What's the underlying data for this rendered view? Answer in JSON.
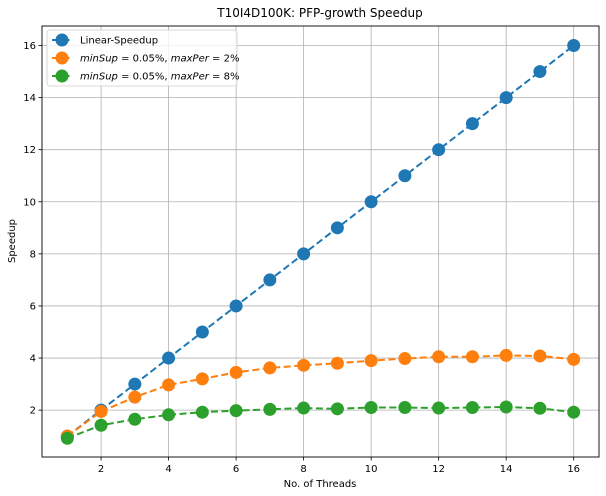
{
  "chart_data": {
    "type": "line",
    "title": "T10I4D100K: PFP-growth Speedup",
    "xlabel": "No. of Threads",
    "ylabel": "Speedup",
    "xlim": [
      0.25,
      16.75
    ],
    "ylim": [
      0.2,
      16.75
    ],
    "xticks": [
      2,
      4,
      6,
      8,
      10,
      12,
      14,
      16
    ],
    "yticks": [
      2,
      4,
      6,
      8,
      10,
      12,
      14,
      16
    ],
    "grid": true,
    "legend_position": "top-left",
    "x": [
      1,
      2,
      3,
      4,
      5,
      6,
      7,
      8,
      9,
      10,
      11,
      12,
      13,
      14,
      15,
      16
    ],
    "series": [
      {
        "name": "Linear-Speedup",
        "legend_parts": [
          {
            "text": "Linear-Speedup",
            "italic": false
          }
        ],
        "color": "#1f77b4",
        "values": [
          1,
          2,
          3,
          4,
          5,
          6,
          7,
          8,
          9,
          10,
          11,
          12,
          13,
          14,
          15,
          16
        ]
      },
      {
        "name": "minSup = 0.05%, maxPer = 2%",
        "legend_parts": [
          {
            "text": "minSup",
            "italic": true
          },
          {
            "text": " = 0.05%, ",
            "italic": false
          },
          {
            "text": "maxPer",
            "italic": true
          },
          {
            "text": " = 2%",
            "italic": false
          }
        ],
        "color": "#ff7f0e",
        "values": [
          1.0,
          1.95,
          2.5,
          2.97,
          3.2,
          3.45,
          3.62,
          3.72,
          3.8,
          3.9,
          3.98,
          4.05,
          4.05,
          4.1,
          4.08,
          3.95
        ]
      },
      {
        "name": "minSup = 0.05%, maxPer = 8%",
        "legend_parts": [
          {
            "text": "minSup",
            "italic": true
          },
          {
            "text": " = 0.05%, ",
            "italic": false
          },
          {
            "text": "maxPer",
            "italic": true
          },
          {
            "text": " = 8%",
            "italic": false
          }
        ],
        "color": "#2ca02c",
        "values": [
          0.92,
          1.42,
          1.65,
          1.82,
          1.92,
          1.98,
          2.03,
          2.08,
          2.05,
          2.1,
          2.1,
          2.08,
          2.1,
          2.12,
          2.07,
          1.92
        ]
      }
    ]
  }
}
